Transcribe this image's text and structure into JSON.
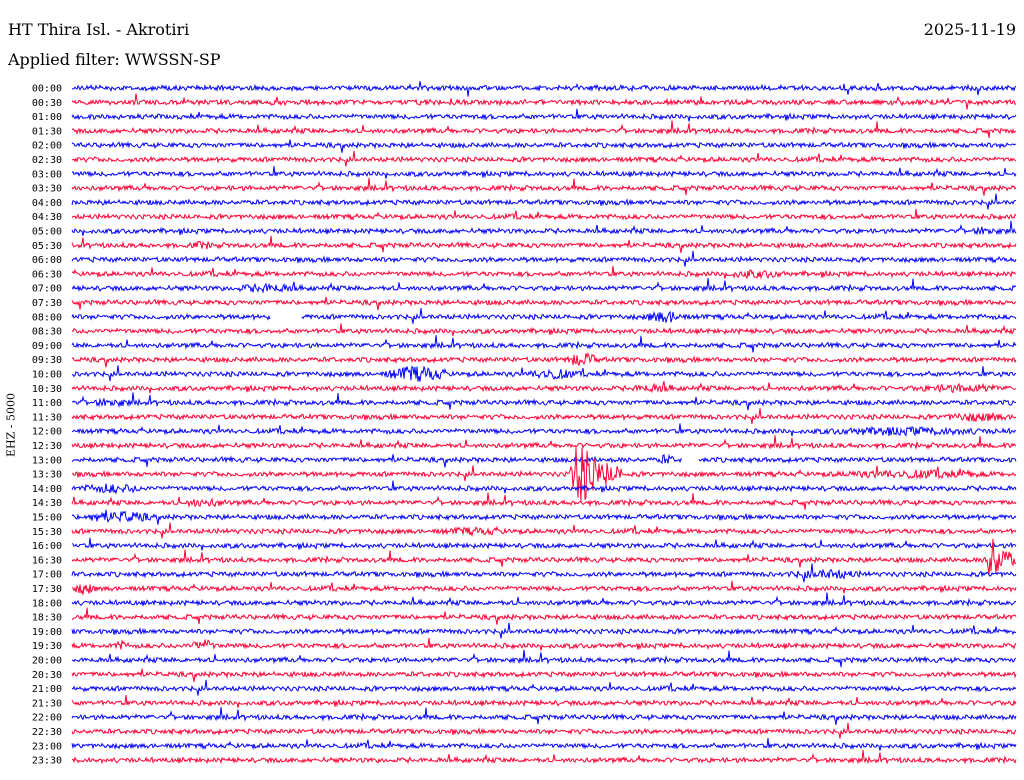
{
  "header": {
    "station": "HT Thira Isl. - Akrotiri",
    "date": "2025-11-19",
    "filter": "Applied filter: WWSSN-SP",
    "channel_label": "EHZ - 5000"
  },
  "colors": {
    "even": "#0000ff",
    "odd": "#ff0033",
    "background": "#ffffff"
  },
  "chart_data": {
    "type": "line",
    "title": "HT Thira Isl. - Akrotiri",
    "subtitle": "Applied filter: WWSSN-SP",
    "date": "2025-11-19",
    "ylabel": "EHZ - 5000",
    "xlabel": "",
    "rows": [
      "00:00",
      "00:30",
      "01:00",
      "01:30",
      "02:00",
      "02:30",
      "03:00",
      "03:30",
      "04:00",
      "04:30",
      "05:00",
      "05:30",
      "06:00",
      "06:30",
      "07:00",
      "07:30",
      "08:00",
      "08:30",
      "09:00",
      "09:30",
      "10:00",
      "10:30",
      "11:00",
      "11:30",
      "12:00",
      "12:30",
      "13:00",
      "13:30",
      "14:00",
      "14:30",
      "15:00",
      "15:30",
      "16:00",
      "16:30",
      "17:00",
      "17:30",
      "18:00",
      "18:30",
      "19:00",
      "19:30",
      "20:00",
      "20:30",
      "21:00",
      "21:30",
      "22:00",
      "22:30",
      "23:00",
      "23:30"
    ],
    "row_minutes": 30,
    "events": [
      {
        "row": "08:00",
        "minute_start": 6.3,
        "minute_end": 7.3,
        "kind": "gap"
      },
      {
        "row": "08:00",
        "minute_start": 18.1,
        "minute_end": 19.6,
        "amplitude": 2.2
      },
      {
        "row": "10:00",
        "minute_start": 9.8,
        "minute_end": 12.1,
        "amplitude": 3.0
      },
      {
        "row": "10:00",
        "minute_start": 14.3,
        "minute_end": 16.2,
        "amplitude": 1.8
      },
      {
        "row": "09:30",
        "minute_start": 15.6,
        "minute_end": 16.8,
        "amplitude": 2.5
      },
      {
        "row": "13:30",
        "minute_start": 15.8,
        "minute_end": 17.5,
        "amplitude": 15.0,
        "kind": "earthquake"
      },
      {
        "row": "13:00",
        "minute_start": 18.6,
        "minute_end": 19.2,
        "amplitude": 1.8
      },
      {
        "row": "13:00",
        "minute_start": 19.4,
        "minute_end": 19.9,
        "kind": "gap"
      },
      {
        "row": "14:00",
        "minute_start": 0.0,
        "minute_end": 2.5,
        "amplitude": 1.6
      },
      {
        "row": "15:00",
        "minute_start": 0.0,
        "minute_end": 2.8,
        "amplitude": 2.0
      },
      {
        "row": "16:30",
        "minute_start": 29.0,
        "minute_end": 30.0,
        "amplitude": 13.0,
        "kind": "earthquake"
      },
      {
        "row": "17:00",
        "minute_start": 22.5,
        "minute_end": 25.5,
        "amplitude": 1.5
      },
      {
        "row": "17:30",
        "minute_start": 0.0,
        "minute_end": 0.8,
        "amplitude": 2.2
      },
      {
        "row": "19:30",
        "minute_start": 1.2,
        "minute_end": 1.9,
        "amplitude": 1.5
      },
      {
        "row": "19:30",
        "minute_start": 3.7,
        "minute_end": 4.6,
        "amplitude": 2.2
      },
      {
        "row": "11:00",
        "minute_start": 0.5,
        "minute_end": 2.0,
        "amplitude": 1.4
      },
      {
        "row": "11:30",
        "minute_start": 27.5,
        "minute_end": 30.0,
        "amplitude": 1.5
      },
      {
        "row": "12:00",
        "minute_start": 23.0,
        "minute_end": 30.0,
        "amplitude": 1.3
      },
      {
        "row": "10:30",
        "minute_start": 17.6,
        "minute_end": 19.4,
        "amplitude": 1.4
      },
      {
        "row": "10:30",
        "minute_start": 26.5,
        "minute_end": 30.0,
        "amplitude": 1.3
      },
      {
        "row": "13:30",
        "minute_start": 23.5,
        "minute_end": 30.0,
        "amplitude": 1.3
      },
      {
        "row": "06:30",
        "minute_start": 20.5,
        "minute_end": 23.0,
        "amplitude": 1.3
      },
      {
        "row": "07:00",
        "minute_start": 5.0,
        "minute_end": 7.5,
        "amplitude": 1.5
      },
      {
        "row": "14:30",
        "minute_start": 3.3,
        "minute_end": 5.2,
        "amplitude": 1.3
      },
      {
        "row": "15:30",
        "minute_start": 11.5,
        "minute_end": 14.0,
        "amplitude": 1.2
      },
      {
        "row": "05:00",
        "minute_start": 28.5,
        "minute_end": 29.6,
        "amplitude": 1.3
      },
      {
        "row": "05:30",
        "minute_start": 3.7,
        "minute_end": 4.6,
        "amplitude": 1.3
      }
    ]
  }
}
